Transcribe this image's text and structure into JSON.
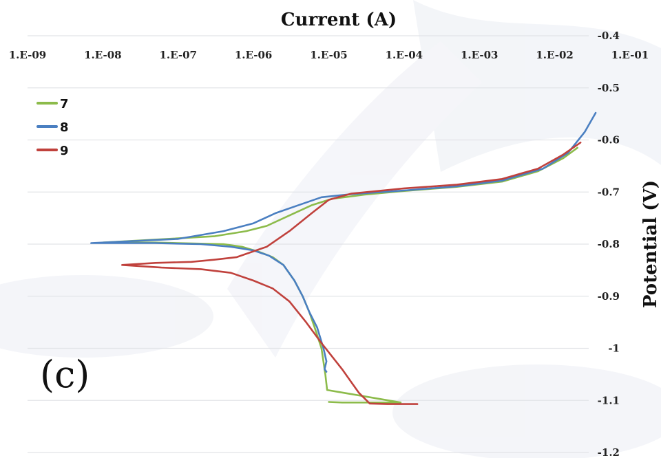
{
  "chart_data": {
    "type": "line",
    "title": "",
    "panel_label": "(c)",
    "xlabel": "Current (A)",
    "ylabel": "Potential (V)",
    "x_scale": "log",
    "xlim": [
      1e-09,
      0.1
    ],
    "ylim": [
      -1.2,
      -0.4
    ],
    "x_ticks": [
      "1.E-09",
      "1.E-08",
      "1.E-07",
      "1.E-06",
      "1.E-05",
      "1.E-04",
      "1.E-03",
      "1.E-02",
      "1.E-01"
    ],
    "y_ticks": [
      "-0.4",
      "-0.5",
      "-0.6",
      "-0.7",
      "-0.8",
      "-0.9",
      "-1",
      "-1.1",
      "-1.2"
    ],
    "x_axis_position": "top",
    "y_axis_position": "right",
    "grid": "horizontal",
    "legend_position": "top-left",
    "series": [
      {
        "name": "7",
        "color": "#8cbb4a",
        "points": [
          [
            1e-05,
            -1.103
          ],
          [
            1.5e-05,
            -1.104
          ],
          [
            3e-05,
            -1.104
          ],
          [
            9e-05,
            -1.104
          ],
          [
            9.5e-06,
            -1.08
          ],
          [
            9e-06,
            -1.05
          ],
          [
            8e-06,
            -1.0
          ],
          [
            6.5e-06,
            -0.96
          ],
          [
            5.5e-06,
            -0.93
          ],
          [
            4.5e-06,
            -0.9
          ],
          [
            3.5e-06,
            -0.87
          ],
          [
            2.5e-06,
            -0.84
          ],
          [
            1.8e-06,
            -0.825
          ],
          [
            1.2e-06,
            -0.815
          ],
          [
            7e-07,
            -0.805
          ],
          [
            4e-07,
            -0.8
          ],
          [
            1e-07,
            -0.798
          ],
          [
            5e-08,
            -0.797
          ],
          [
            1e-08,
            -0.797
          ],
          [
            3e-07,
            -0.785
          ],
          [
            8e-07,
            -0.775
          ],
          [
            1.5e-06,
            -0.765
          ],
          [
            3e-06,
            -0.745
          ],
          [
            6e-06,
            -0.725
          ],
          [
            1.1e-05,
            -0.713
          ],
          [
            3e-05,
            -0.705
          ],
          [
            0.0001,
            -0.698
          ],
          [
            0.0005,
            -0.69
          ],
          [
            0.002,
            -0.68
          ],
          [
            0.006,
            -0.66
          ],
          [
            0.013,
            -0.635
          ],
          [
            0.02,
            -0.615
          ]
        ]
      },
      {
        "name": "8",
        "color": "#4a7fc1",
        "points": [
          [
            9.3e-06,
            -1.045
          ],
          [
            8.8e-06,
            -1.04
          ],
          [
            9.3e-06,
            -1.025
          ],
          [
            8.5e-06,
            -1.0
          ],
          [
            7e-06,
            -0.96
          ],
          [
            5.5e-06,
            -0.93
          ],
          [
            4.5e-06,
            -0.9
          ],
          [
            3.5e-06,
            -0.87
          ],
          [
            2.5e-06,
            -0.84
          ],
          [
            1.6e-06,
            -0.822
          ],
          [
            1e-06,
            -0.812
          ],
          [
            5e-07,
            -0.805
          ],
          [
            2e-07,
            -0.8
          ],
          [
            5e-08,
            -0.798
          ],
          [
            7e-09,
            -0.798
          ],
          [
            1e-07,
            -0.79
          ],
          [
            4e-07,
            -0.775
          ],
          [
            1e-06,
            -0.76
          ],
          [
            2e-06,
            -0.74
          ],
          [
            4e-06,
            -0.725
          ],
          [
            8e-06,
            -0.71
          ],
          [
            2e-05,
            -0.704
          ],
          [
            0.0001,
            -0.697
          ],
          [
            0.0005,
            -0.689
          ],
          [
            0.002,
            -0.678
          ],
          [
            0.007,
            -0.655
          ],
          [
            0.015,
            -0.625
          ],
          [
            0.025,
            -0.585
          ],
          [
            0.035,
            -0.548
          ]
        ]
      },
      {
        "name": "9",
        "color": "#c0413c",
        "points": [
          [
            0.00015,
            -1.107
          ],
          [
            6e-05,
            -1.107
          ],
          [
            3.5e-05,
            -1.106
          ],
          [
            2.5e-05,
            -1.085
          ],
          [
            1.5e-05,
            -1.04
          ],
          [
            8e-06,
            -0.99
          ],
          [
            5e-06,
            -0.95
          ],
          [
            3e-06,
            -0.91
          ],
          [
            1.8e-06,
            -0.885
          ],
          [
            1e-06,
            -0.87
          ],
          [
            5e-07,
            -0.855
          ],
          [
            2e-07,
            -0.848
          ],
          [
            6e-08,
            -0.845
          ],
          [
            1.8e-08,
            -0.84
          ],
          [
            5e-08,
            -0.836
          ],
          [
            1.5e-07,
            -0.834
          ],
          [
            3e-07,
            -0.83
          ],
          [
            6e-07,
            -0.825
          ],
          [
            1.5e-06,
            -0.805
          ],
          [
            3e-06,
            -0.775
          ],
          [
            6e-06,
            -0.74
          ],
          [
            1e-05,
            -0.715
          ],
          [
            2e-05,
            -0.703
          ],
          [
            0.0001,
            -0.693
          ],
          [
            0.0005,
            -0.686
          ],
          [
            0.002,
            -0.675
          ],
          [
            0.006,
            -0.655
          ],
          [
            0.013,
            -0.628
          ],
          [
            0.022,
            -0.605
          ]
        ]
      }
    ]
  }
}
